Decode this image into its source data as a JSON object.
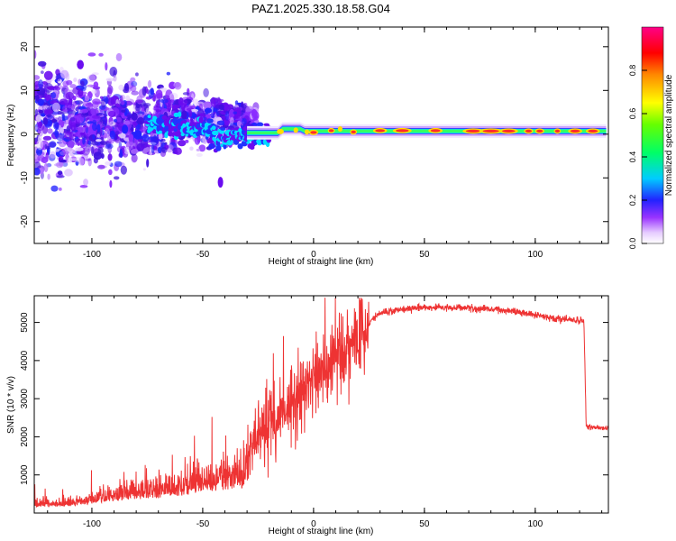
{
  "title": "PAZ1.2025.330.18.58.G04",
  "chart_data": [
    {
      "type": "heatmap",
      "title": "PAZ1.2025.330.18.58.G04",
      "xlabel": "Height of straight line (km)",
      "ylabel": "Frequency (Hz)",
      "xlim": [
        -126,
        133
      ],
      "ylim": [
        -25,
        24.5
      ],
      "xticks": [
        -100,
        -50,
        0,
        50,
        100
      ],
      "xtick_labels": [
        "-100",
        "-50",
        "0",
        "50",
        "100"
      ],
      "yticks": [
        -20,
        -10,
        0,
        10,
        20
      ],
      "ytick_labels": [
        "-20",
        "-10",
        "0",
        "10",
        "20"
      ],
      "colorbar": {
        "label": "Normalized spectral amplitude",
        "range": [
          0,
          1
        ],
        "ticks": [
          0.0,
          0.2,
          0.4,
          0.6,
          0.8
        ],
        "tick_labels": [
          "0.0",
          "0.2",
          "0.4",
          "0.6",
          "0.8"
        ]
      },
      "ridge": {
        "description_x": [
          -100,
          -80,
          -60,
          -45,
          -35,
          -25,
          -10,
          0,
          10,
          20,
          40,
          60,
          80,
          100,
          120,
          133
        ],
        "center_freq": [
          4,
          3,
          2.5,
          0.5,
          -1,
          -0.5,
          1,
          0.3,
          0.5,
          0.5,
          0.7,
          0.7,
          0.7,
          0.7,
          0.7,
          0.7
        ]
      }
    },
    {
      "type": "line",
      "xlabel": "Height of straight line (km)",
      "ylabel": "SNR (10 * v/v)",
      "xlim": [
        -126,
        133
      ],
      "ylim": [
        0,
        5700
      ],
      "xticks": [
        -100,
        -50,
        0,
        50,
        100
      ],
      "xtick_labels": [
        "-100",
        "-50",
        "0",
        "50",
        "100"
      ],
      "yticks": [
        1000,
        2000,
        3000,
        4000,
        5000
      ],
      "ytick_labels": [
        "1000",
        "2000",
        "3000",
        "4000",
        "5000"
      ],
      "color": "#ee3333",
      "x": [
        -126,
        -110,
        -100,
        -90,
        -80,
        -70,
        -60,
        -50,
        -40,
        -32,
        -28,
        -25,
        -20,
        -15,
        -10,
        -5,
        0,
        5,
        10,
        15,
        20,
        25,
        30,
        40,
        50,
        60,
        70,
        80,
        90,
        100,
        110,
        120,
        122,
        123,
        126,
        133
      ],
      "y": [
        220,
        230,
        320,
        420,
        480,
        520,
        600,
        720,
        800,
        850,
        1800,
        2100,
        2400,
        2600,
        3000,
        3200,
        3500,
        3700,
        4000,
        4300,
        4600,
        5000,
        5250,
        5350,
        5400,
        5400,
        5380,
        5350,
        5300,
        5200,
        5100,
        5050,
        5000,
        2250,
        2250,
        2230
      ]
    }
  ]
}
